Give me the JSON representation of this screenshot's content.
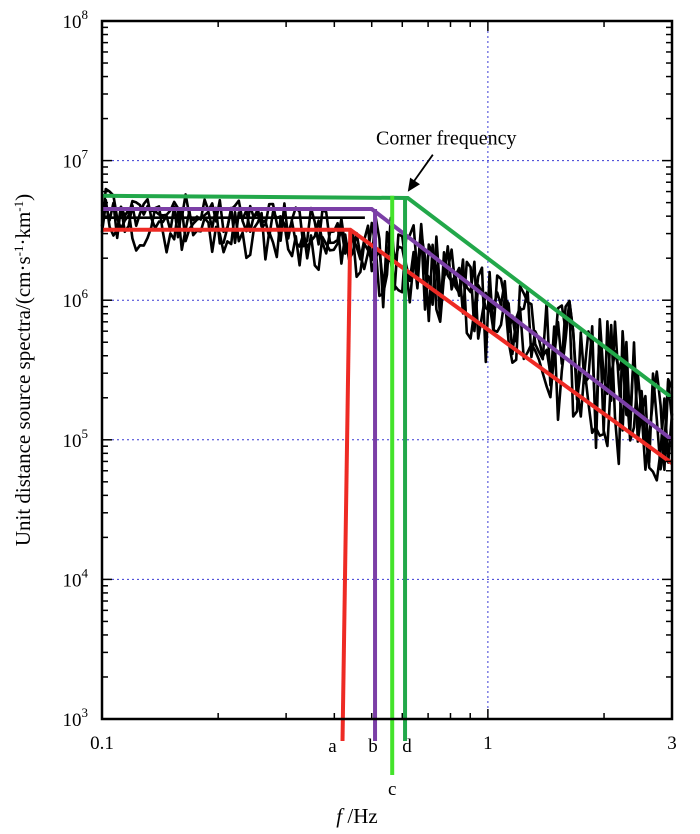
{
  "chart_data": {
    "type": "line",
    "xscale": "log",
    "yscale": "log",
    "xlim": [
      0.1,
      3
    ],
    "ylim": [
      1000,
      100000000
    ],
    "grid": true,
    "xlabel": {
      "italic": "f",
      "rest": " /Hz"
    },
    "ylabel": "Unit distance source spectra/(cm·s-1·km-1)",
    "ylabel_parts": [
      {
        "t": "Unit distance source spectra/(cm·s"
      },
      {
        "t": "-1",
        "sup": true
      },
      {
        "t": "·km"
      },
      {
        "t": "-1",
        "sup": true
      },
      {
        "t": ")"
      }
    ],
    "x_ticks": [
      {
        "value": 0.1,
        "label": "0.1"
      },
      {
        "value": 1,
        "label": "1"
      },
      {
        "value": 3,
        "label": "3"
      }
    ],
    "y_ticks": [
      {
        "value": 1000,
        "base": "10",
        "exp": "3"
      },
      {
        "value": 10000,
        "base": "10",
        "exp": "4"
      },
      {
        "value": 100000,
        "base": "10",
        "exp": "5"
      },
      {
        "value": 1000000,
        "base": "10",
        "exp": "6"
      },
      {
        "value": 10000000,
        "base": "10",
        "exp": "7"
      },
      {
        "value": 100000000,
        "base": "10",
        "exp": "8"
      }
    ],
    "annotation": {
      "text": "Corner frequency",
      "tx": 0.78,
      "ty": 13000000,
      "ax": 0.62,
      "ay": 5600000
    },
    "colors": {
      "red": "#ee2a24",
      "purple": "#7b3fa6",
      "light_green": "#44e32b",
      "dark_green": "#22a84a",
      "spectrum": "#000000",
      "grid": "#3b3bd6"
    },
    "corner_markers": [
      {
        "label": "a",
        "f": 0.42,
        "color": "#ee2a24"
      },
      {
        "label": "b",
        "f": 0.51,
        "color": "#7b3fa6"
      },
      {
        "label": "c",
        "f": 0.565,
        "color": "#44e32b"
      },
      {
        "label": "d",
        "f": 0.61,
        "color": "#22a84a"
      }
    ],
    "series": [
      {
        "kind": "model",
        "color": "#ee2a24",
        "points": [
          [
            0.1,
            3200000
          ],
          [
            0.44,
            3200000
          ],
          [
            3,
            68000
          ]
        ]
      },
      {
        "kind": "model",
        "color": "#7b3fa6",
        "points": [
          [
            0.1,
            4500000
          ],
          [
            0.5,
            4500000
          ],
          [
            3,
            100000
          ]
        ]
      },
      {
        "kind": "model",
        "color": "#22a84a",
        "points": [
          [
            0.1,
            5600000
          ],
          [
            0.62,
            5400000
          ],
          [
            3,
            200000
          ]
        ]
      },
      {
        "kind": "spectrum",
        "color": "#000000",
        "seed": 11,
        "level": 4000000,
        "spread": 0.45
      },
      {
        "kind": "spectrum",
        "color": "#000000",
        "seed": 29,
        "level": 3500000,
        "spread": 0.5
      },
      {
        "kind": "spectrum",
        "color": "#000000",
        "seed": 47,
        "level": 4600000,
        "spread": 0.42
      }
    ]
  }
}
